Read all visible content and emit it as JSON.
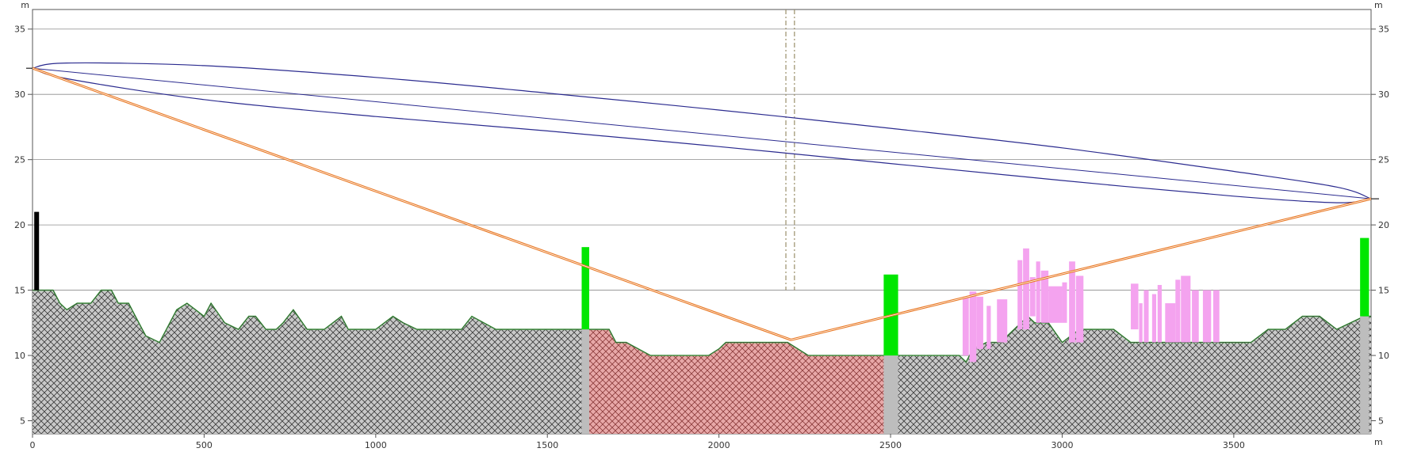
{
  "chart_data": {
    "type": "area",
    "title": "",
    "y_unit_label": "m",
    "x_unit_label": "m",
    "xlim": [
      0,
      3900
    ],
    "ylim": [
      4,
      36.5
    ],
    "x_ticks": [
      0,
      500,
      1000,
      1500,
      2000,
      2500,
      3000,
      3500
    ],
    "y_ticks": [
      5,
      10,
      15,
      20,
      25,
      30,
      35
    ],
    "grid": true,
    "colors": {
      "terrain_fill": "#c9c9c9",
      "terrain_hatch": "#3a3a3a",
      "terrain_highlight_fill": "#e8a8a8",
      "terrain_outline": "#55c855",
      "fresnel_zone": "#2b2b8f",
      "reflection_path": "#e87722",
      "clutter_pink": "#f4a3ef",
      "obstacle_green": "#00e600",
      "support_grey": "#bdbdbd",
      "antenna_black": "#000000",
      "marker_line": "#9a8f6a"
    },
    "series": [
      {
        "kind": "terrain",
        "x": [
          0,
          60,
          80,
          100,
          130,
          170,
          200,
          230,
          250,
          280,
          300,
          330,
          370,
          390,
          420,
          450,
          500,
          520,
          560,
          600,
          630,
          650,
          680,
          710,
          730,
          760,
          800,
          850,
          900,
          920,
          960,
          1000,
          1050,
          1080,
          1120,
          1150,
          1200,
          1250,
          1280,
          1350,
          1400,
          1440,
          1470,
          1500,
          1550,
          1590,
          1620,
          1680,
          1700,
          1730,
          1800,
          1900,
          1970,
          2000,
          2020,
          2050,
          2100,
          2150,
          2200,
          2230,
          2260,
          2280,
          2300,
          2400,
          2480,
          2500,
          2550,
          2600,
          2700,
          2720,
          2740,
          2780,
          2820,
          2860,
          2900,
          2920,
          2960,
          3000,
          3050,
          3100,
          3150,
          3200,
          3260,
          3300,
          3350,
          3400,
          3450,
          3500,
          3550,
          3600,
          3650,
          3700,
          3750,
          3800,
          3880,
          3900
        ],
        "y": [
          15,
          15,
          14,
          13.5,
          14,
          14,
          15,
          15,
          14,
          14,
          13,
          11.5,
          11,
          12,
          13.5,
          14,
          13,
          14,
          12.5,
          12,
          13,
          13,
          12,
          12,
          12.5,
          13.5,
          12,
          12,
          13,
          12,
          12,
          12,
          13,
          12.5,
          12,
          12,
          12,
          12,
          13,
          12,
          12,
          12,
          12,
          12,
          12,
          12,
          12,
          12,
          11,
          11,
          10,
          10,
          10,
          10.5,
          11,
          11,
          11,
          11,
          11,
          10.5,
          10,
          10,
          10,
          10,
          10,
          10,
          10,
          10,
          10,
          9.5,
          10.5,
          11,
          11,
          12,
          13,
          12.5,
          12.5,
          11,
          12,
          12,
          12,
          11,
          11,
          11,
          11,
          11,
          11,
          11,
          11,
          12,
          12,
          13,
          13,
          12,
          13,
          13
        ]
      },
      {
        "kind": "highlight",
        "x_range": [
          1610,
          2480
        ]
      },
      {
        "kind": "fresnel_upper",
        "x": [
          0,
          100,
          500,
          1000,
          1500,
          2000,
          2500,
          3000,
          3500,
          3800,
          3900
        ],
        "y": [
          32,
          32.4,
          32.2,
          31.3,
          30.1,
          28.8,
          27.4,
          25.9,
          24.1,
          22.9,
          22
        ]
      },
      {
        "kind": "fresnel_lower",
        "x": [
          0,
          100,
          500,
          1000,
          1500,
          2000,
          2500,
          3000,
          3500,
          3800,
          3900
        ],
        "y": [
          32,
          31.2,
          29.6,
          28.3,
          27.2,
          26.0,
          24.7,
          23.4,
          22.2,
          21.7,
          22
        ]
      },
      {
        "kind": "line_of_sight",
        "x": [
          0,
          3900
        ],
        "y": [
          32,
          22
        ]
      },
      {
        "kind": "reflection_path",
        "x": [
          0,
          2210,
          3900
        ],
        "y": [
          32,
          11.2,
          22
        ]
      }
    ],
    "obstacles": [
      {
        "x": 1600,
        "width": 22,
        "base": 4,
        "support_top": 12,
        "top": 18.3
      },
      {
        "x": 2480,
        "width": 42,
        "base": 4,
        "support_top": 10,
        "top": 16.2
      },
      {
        "x": 3868,
        "width": 26,
        "base": 4,
        "support_top": 13,
        "top": 19
      }
    ],
    "antennas": [
      {
        "x": 5,
        "width": 14,
        "base": 15,
        "top": 21
      }
    ],
    "markers": [
      {
        "x": 2195
      },
      {
        "x": 2220
      }
    ],
    "clutter": [
      {
        "x": 2710,
        "width": 18,
        "top": 14.5
      },
      {
        "x": 2730,
        "width": 20,
        "top": 14.9
      },
      {
        "x": 2750,
        "width": 20,
        "top": 14.5
      },
      {
        "x": 2780,
        "width": 12,
        "top": 13.8
      },
      {
        "x": 2810,
        "width": 30,
        "top": 14.3
      },
      {
        "x": 2870,
        "width": 14,
        "top": 17.3
      },
      {
        "x": 2886,
        "width": 18,
        "top": 18.2
      },
      {
        "x": 2906,
        "width": 16,
        "top": 16.0
      },
      {
        "x": 2924,
        "width": 12,
        "top": 17.2
      },
      {
        "x": 2938,
        "width": 22,
        "top": 16.5
      },
      {
        "x": 2960,
        "width": 40,
        "top": 15.3
      },
      {
        "x": 3000,
        "width": 14,
        "top": 15.6
      },
      {
        "x": 3020,
        "width": 18,
        "top": 17.2
      },
      {
        "x": 3040,
        "width": 22,
        "top": 16.1
      },
      {
        "x": 3200,
        "width": 22,
        "top": 15.5
      },
      {
        "x": 3224,
        "width": 10,
        "top": 14.0
      },
      {
        "x": 3238,
        "width": 14,
        "top": 15.0
      },
      {
        "x": 3262,
        "width": 12,
        "top": 14.7
      },
      {
        "x": 3278,
        "width": 12,
        "top": 15.4
      },
      {
        "x": 3300,
        "width": 30,
        "top": 14.0
      },
      {
        "x": 3330,
        "width": 14,
        "top": 15.8
      },
      {
        "x": 3346,
        "width": 28,
        "top": 16.1
      },
      {
        "x": 3378,
        "width": 20,
        "top": 15.0
      },
      {
        "x": 3410,
        "width": 24,
        "top": 15.0
      },
      {
        "x": 3440,
        "width": 18,
        "top": 15.0
      }
    ]
  }
}
